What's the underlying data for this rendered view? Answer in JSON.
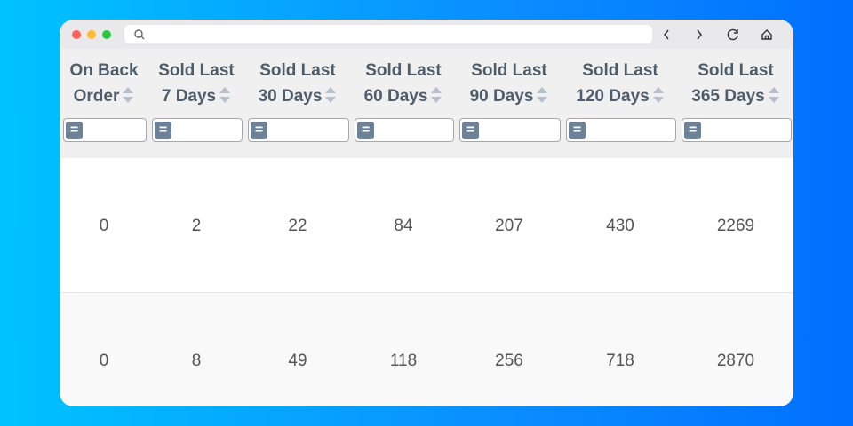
{
  "table": {
    "columns": [
      [
        "On Back",
        "Order"
      ],
      [
        "Sold Last",
        "7 Days"
      ],
      [
        "Sold Last",
        "30 Days"
      ],
      [
        "Sold Last",
        "60 Days"
      ],
      [
        "Sold Last",
        "90 Days"
      ],
      [
        "Sold Last",
        "120 Days"
      ],
      [
        "Sold Last",
        "365 Days"
      ]
    ],
    "filter_button": "=",
    "rows": [
      [
        0,
        2,
        22,
        84,
        207,
        430,
        2269
      ],
      [
        0,
        8,
        49,
        118,
        256,
        718,
        2870
      ]
    ]
  }
}
